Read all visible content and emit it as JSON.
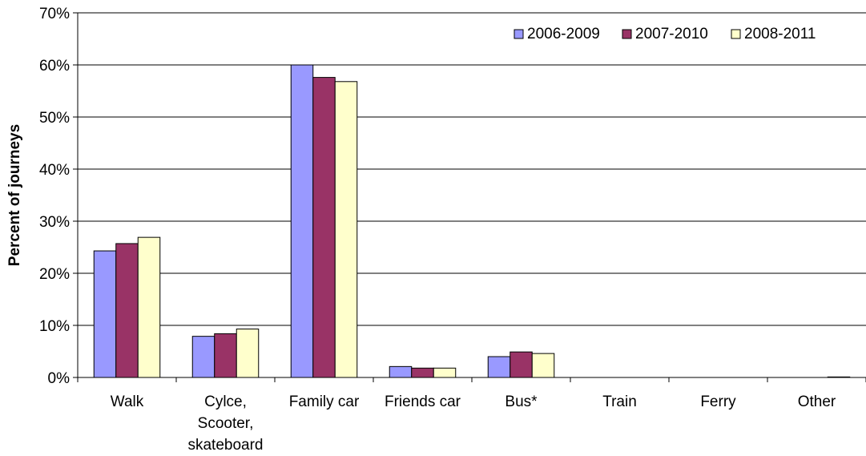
{
  "chart_data": {
    "type": "bar",
    "categories": [
      "Walk",
      "Cylce, Scooter, skateboard",
      "Family car",
      "Friends car",
      "Bus*",
      "Train",
      "Ferry",
      "Other"
    ],
    "category_lines": [
      [
        "Walk"
      ],
      [
        "Cylce,",
        "Scooter,",
        "skateboard"
      ],
      [
        "Family car"
      ],
      [
        "Friends car"
      ],
      [
        "Bus*"
      ],
      [
        "Train"
      ],
      [
        "Ferry"
      ],
      [
        "Other"
      ]
    ],
    "series": [
      {
        "name": "2006-2009",
        "color": "#9999ff",
        "values": [
          24.3,
          7.9,
          60.0,
          2.1,
          4.0,
          0,
          0,
          0
        ]
      },
      {
        "name": "2007-2010",
        "color": "#993366",
        "values": [
          25.7,
          8.4,
          57.6,
          1.8,
          4.9,
          0,
          0,
          0
        ]
      },
      {
        "name": "2008-2011",
        "color": "#ffffcc",
        "values": [
          26.9,
          9.3,
          56.8,
          1.8,
          4.6,
          0,
          0,
          0.1
        ]
      }
    ],
    "ylabel": "Percent of journeys",
    "xlabel": "",
    "title": "",
    "ylim": [
      0,
      70
    ],
    "yticks": [
      0,
      10,
      20,
      30,
      40,
      50,
      60,
      70
    ],
    "ytick_labels": [
      "0%",
      "10%",
      "20%",
      "30%",
      "40%",
      "50%",
      "60%",
      "70%"
    ],
    "grid": true,
    "legend_position": "top-right"
  }
}
